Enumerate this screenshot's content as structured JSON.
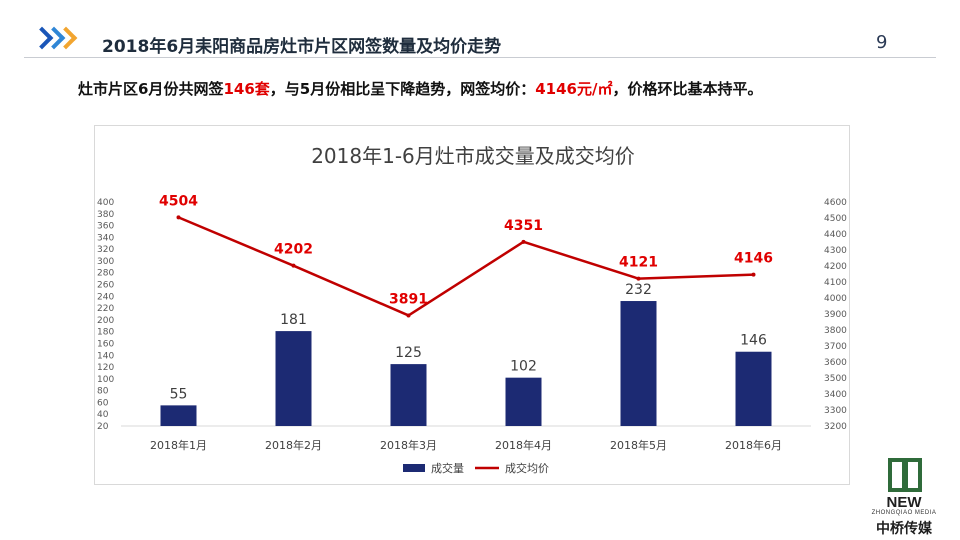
{
  "header": {
    "title": "2018年6月耒阳商品房灶市片区网签数量及均价走势",
    "page_number": "9"
  },
  "summary": {
    "part1": "灶市片区6月份共网签",
    "volume": "146套",
    "part2": "，与5月份相比呈下降趋势，网签均价：",
    "price": "4146元/㎡",
    "part3": "，价格环比基本持平。"
  },
  "logo": {
    "name": "NEW",
    "sub": "ZHONGQIAO MEDIA",
    "cn": "中桥传媒"
  },
  "colors": {
    "bar": "#1c2a73",
    "line": "#c00000",
    "chevron1": "#1a56b8",
    "chevron2": "#2f86d6",
    "chevron3": "#f2a530"
  },
  "chart_data": {
    "type": "bar",
    "title": "2018年1-6月灶市成交量及成交均价",
    "categories": [
      "2018年1月",
      "2018年2月",
      "2018年3月",
      "2018年4月",
      "2018年5月",
      "2018年6月"
    ],
    "series": [
      {
        "name": "成交量",
        "type": "bar",
        "axis": "left",
        "values": [
          55,
          181,
          125,
          102,
          232,
          146
        ]
      },
      {
        "name": "成交均价",
        "type": "line",
        "axis": "right",
        "values": [
          4504,
          4202,
          3891,
          4351,
          4121,
          4146
        ]
      }
    ],
    "ylim_left": [
      20,
      400
    ],
    "yticks_left": [
      20,
      40,
      60,
      80,
      100,
      120,
      140,
      160,
      180,
      200,
      220,
      240,
      260,
      280,
      300,
      320,
      340,
      360,
      380,
      400
    ],
    "ylim_right": [
      3200,
      4600
    ],
    "yticks_right": [
      3200,
      3300,
      3400,
      3500,
      3600,
      3700,
      3800,
      3900,
      4000,
      4100,
      4200,
      4300,
      4400,
      4500,
      4600
    ],
    "legend": "bottom",
    "grid": false
  }
}
